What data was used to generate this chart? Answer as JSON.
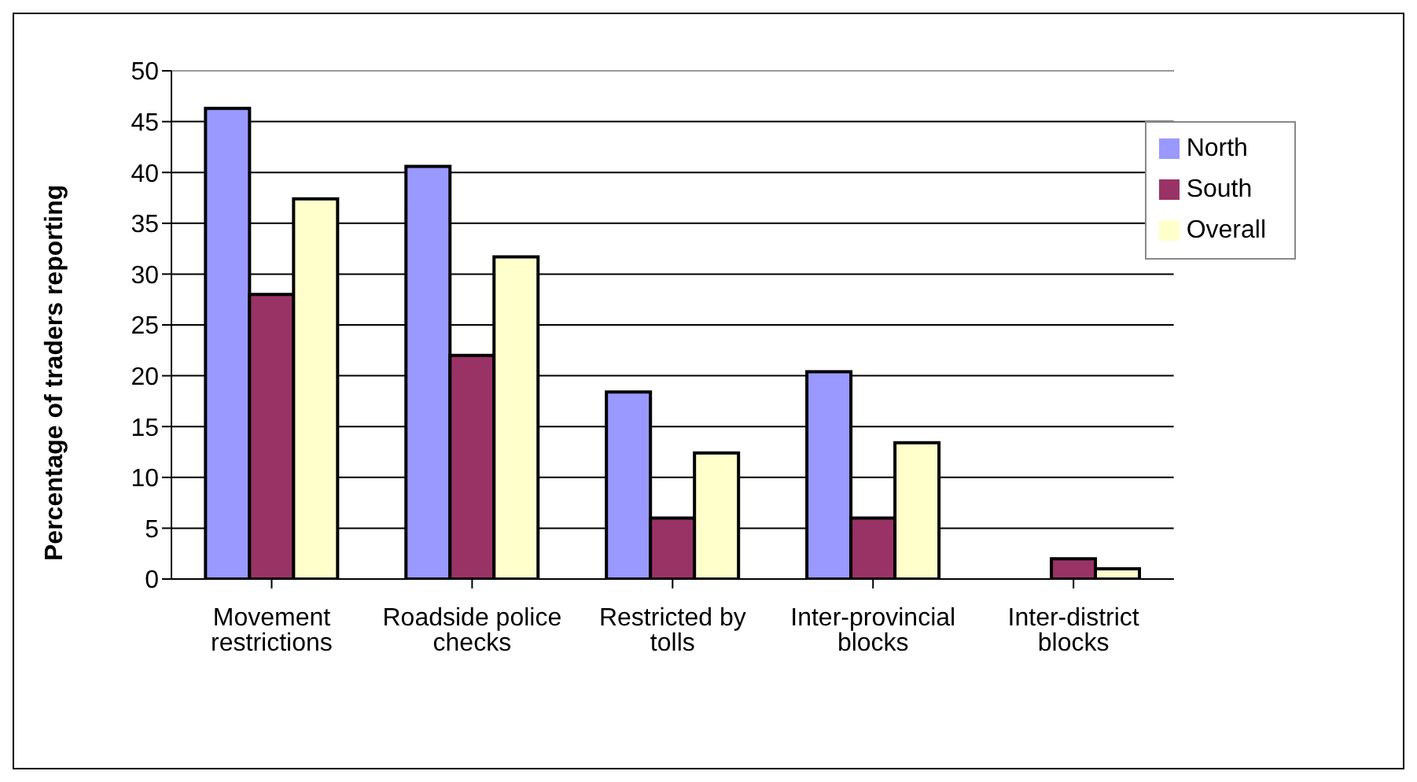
{
  "chart_data": {
    "type": "bar",
    "ylabel": "Percentage of traders reporting",
    "categories": [
      "Movement restrictions",
      "Roadside police checks",
      "Restricted by tolls",
      "Inter-provincial blocks",
      "Inter-district blocks"
    ],
    "series": [
      {
        "name": "North",
        "color": "#9999ff",
        "values": [
          46.3,
          40.6,
          18.4,
          20.4,
          0
        ]
      },
      {
        "name": "South",
        "color": "#993366",
        "values": [
          28,
          22,
          6,
          6,
          2
        ]
      },
      {
        "name": "Overall",
        "color": "#ffffcc",
        "values": [
          37.4,
          31.7,
          12.4,
          13.4,
          1
        ]
      }
    ],
    "ylim": [
      0,
      50
    ],
    "yticks": [
      0,
      5,
      10,
      15,
      20,
      25,
      30,
      35,
      40,
      45,
      50
    ],
    "grid": "y",
    "legend": "top right"
  }
}
